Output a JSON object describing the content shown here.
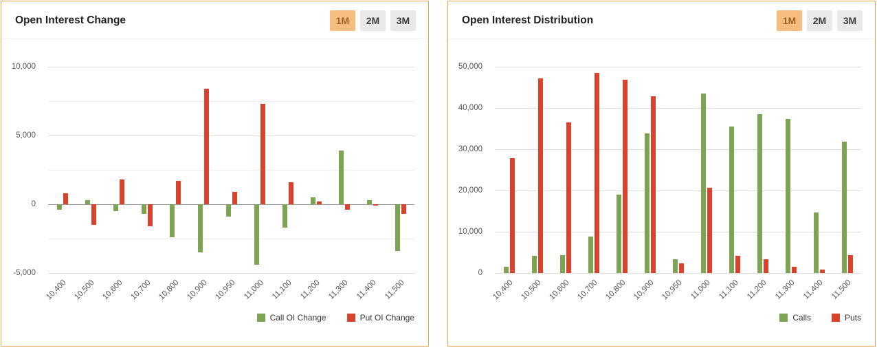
{
  "panels": [
    {
      "title": "Open Interest Change",
      "range_buttons": [
        {
          "label": "1M",
          "active": true
        },
        {
          "label": "2M",
          "active": false
        },
        {
          "label": "3M",
          "active": false
        }
      ]
    },
    {
      "title": "Open Interest Distribution",
      "range_buttons": [
        {
          "label": "1M",
          "active": true
        },
        {
          "label": "2M",
          "active": false
        },
        {
          "label": "3M",
          "active": false
        }
      ]
    }
  ],
  "colors": {
    "call_green": "#7da453",
    "put_red": "#d9432d",
    "active_range_bg": "#f7bd7e",
    "active_range_text": "#9a6524",
    "panel_border": "#e9a24b"
  },
  "chart_data": [
    {
      "type": "bar",
      "title": "Open Interest Change",
      "categories": [
        "10,400",
        "10,500",
        "10,600",
        "10,700",
        "10,800",
        "10,900",
        "10,950",
        "11,000",
        "11,100",
        "11,200",
        "11,300",
        "11,400",
        "11,500"
      ],
      "series": [
        {
          "name": "Call OI Change",
          "color": "#7da453",
          "values": [
            -400,
            300,
            -500,
            -700,
            -2400,
            -3500,
            -900,
            -4400,
            -1700,
            500,
            3900,
            300,
            -3400
          ]
        },
        {
          "name": "Put OI Change",
          "color": "#d9432d",
          "values": [
            800,
            -1500,
            1800,
            -1600,
            1700,
            8400,
            900,
            7300,
            1600,
            200,
            -400,
            -100,
            -700
          ]
        }
      ],
      "ylim": [
        -5000,
        10000
      ],
      "ytick_step": 2500,
      "ylabel_step": 5000,
      "grid": true,
      "legend_position": "bottom-right"
    },
    {
      "type": "bar",
      "title": "Open Interest Distribution",
      "categories": [
        "10,400",
        "10,500",
        "10,600",
        "10,700",
        "10,800",
        "10,900",
        "10,950",
        "11,000",
        "11,100",
        "11,200",
        "11,300",
        "11,400",
        "11,500"
      ],
      "series": [
        {
          "name": "Calls",
          "color": "#7da453",
          "values": [
            1500,
            4200,
            4400,
            8800,
            19000,
            33800,
            3300,
            43500,
            35500,
            38500,
            37300,
            14700,
            31800
          ]
        },
        {
          "name": "Puts",
          "color": "#d9432d",
          "values": [
            27800,
            47200,
            36500,
            48500,
            46800,
            42800,
            2400,
            20700,
            4100,
            3400,
            1500,
            900,
            4300
          ]
        }
      ],
      "ylim": [
        0,
        50000
      ],
      "ytick_step": 10000,
      "ylabel_step": 10000,
      "grid": true,
      "legend_position": "bottom-right"
    }
  ]
}
